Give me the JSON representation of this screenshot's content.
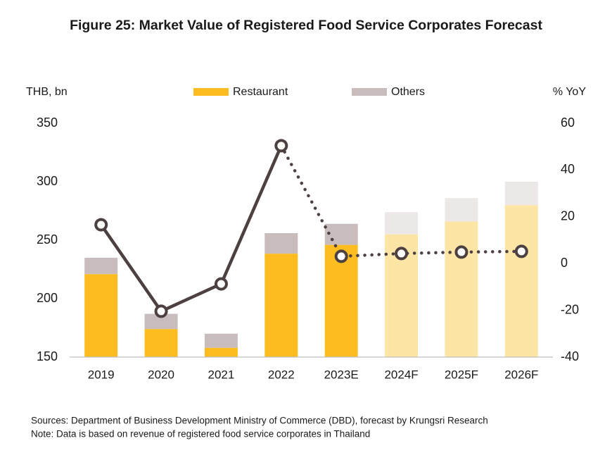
{
  "chart_data": {
    "type": "bar",
    "title": "Figure 25: Market Value of Registered Food Service Corporates Forecast",
    "y_label": "THB, bn",
    "y2_label": "% YoY",
    "categories": [
      "2019",
      "2020",
      "2021",
      "2022",
      "2023E",
      "2024F",
      "2025F",
      "2026F"
    ],
    "stacked": true,
    "series": [
      {
        "name": "Restaurant",
        "color": "#fdbd20",
        "colors": [
          "#fdbd20",
          "#fdbd20",
          "#fdbd20",
          "#fdbd20",
          "#fdbd20",
          "#fde5a5",
          "#fde5a5",
          "#fde5a5"
        ],
        "values": [
          221,
          174,
          158,
          238.5,
          246,
          255,
          266,
          280
        ]
      },
      {
        "name": "Others",
        "color": "#c9bcbc",
        "colors": [
          "#c9bcbc",
          "#c9bcbc",
          "#c9bcbc",
          "#c9bcbc",
          "#c9bcbc",
          "#ede8e8",
          "#ede8e8",
          "#ede8e8"
        ],
        "values": [
          14,
          13,
          12,
          17.5,
          18,
          19,
          20,
          20
        ]
      }
    ],
    "line": {
      "axis": "y2",
      "color": "#4d4040",
      "dotted_from": "2022",
      "values": [
        16.6,
        -20.4,
        -8.7,
        50.4,
        3.1,
        4.3,
        4.9,
        5.2
      ]
    },
    "ylim": [
      150,
      350
    ],
    "yticks": [
      150,
      200,
      250,
      300,
      350
    ],
    "y2lim": [
      -40,
      60
    ],
    "y2ticks": [
      -40,
      -20,
      0,
      20,
      40,
      60
    ],
    "legend": "top",
    "notes": [
      "Sources:  Department of Business Development Ministry of Commerce (DBD), forecast by Krungsri Research",
      "Note: Data is based on revenue of registered food service corporates in Thailand"
    ]
  }
}
